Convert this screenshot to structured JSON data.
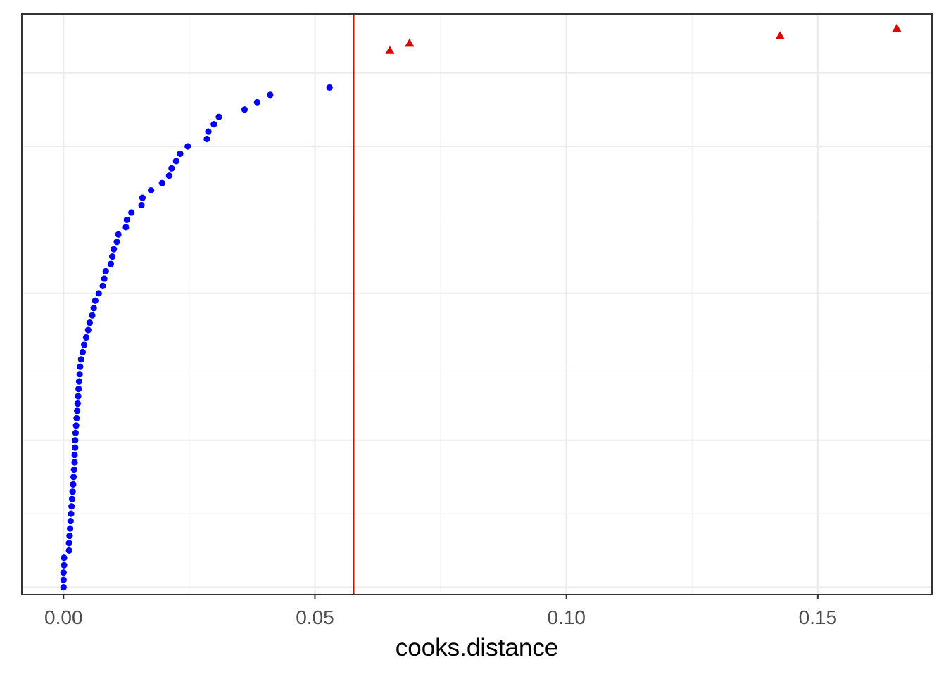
{
  "chart_data": {
    "type": "scatter",
    "title": "",
    "xlabel": "cooks.distance",
    "ylabel": "",
    "xlim": [
      -0.0083,
      0.1727
    ],
    "ylim": [
      0,
      79
    ],
    "x_ticks": [
      0.0,
      0.05,
      0.1,
      0.15
    ],
    "x_tick_labels": [
      "0.00",
      "0.05",
      "0.10",
      "0.15"
    ],
    "y_tick_labels": [],
    "grid": true,
    "legend": "none",
    "threshold": {
      "x": 0.0577,
      "color": "#e00000",
      "orientation": "vertical"
    },
    "series": [
      {
        "marker": "circle",
        "color": "#0000ff",
        "x": [
          0.0,
          0.0,
          0.0,
          0.0001,
          0.0001,
          0.0011,
          0.0011,
          0.0012,
          0.0013,
          0.0014,
          0.0015,
          0.0016,
          0.0017,
          0.0018,
          0.0019,
          0.002,
          0.0021,
          0.0022,
          0.0022,
          0.0023,
          0.0023,
          0.0024,
          0.0025,
          0.0026,
          0.0027,
          0.0028,
          0.0029,
          0.003,
          0.0031,
          0.0032,
          0.0033,
          0.0035,
          0.0038,
          0.0041,
          0.0045,
          0.0049,
          0.0052,
          0.0057,
          0.006,
          0.0063,
          0.007,
          0.0078,
          0.0081,
          0.0084,
          0.0094,
          0.0097,
          0.01,
          0.0106,
          0.0109,
          0.0124,
          0.0126,
          0.0135,
          0.0155,
          0.0157,
          0.0174,
          0.0196,
          0.021,
          0.0215,
          0.0224,
          0.0232,
          0.0247,
          0.0285,
          0.0288,
          0.0299,
          0.0309,
          0.036,
          0.0385,
          0.0411,
          0.0529
        ],
        "y": [
          1,
          2,
          3,
          4,
          5,
          6,
          7,
          8,
          9,
          10,
          11,
          12,
          13,
          14,
          15,
          16,
          17,
          18,
          19,
          20,
          21,
          22,
          23,
          24,
          25,
          26,
          27,
          28,
          29,
          30,
          31,
          32,
          33,
          34,
          35,
          36,
          37,
          38,
          39,
          40,
          41,
          42,
          43,
          44,
          45,
          46,
          47,
          48,
          49,
          50,
          51,
          52,
          53,
          54,
          55,
          56,
          57,
          58,
          59,
          60,
          61,
          62,
          63,
          64,
          65,
          66,
          67,
          68,
          69
        ]
      },
      {
        "marker": "triangle",
        "color": "#e00000",
        "x": [
          0.0649,
          0.0688,
          0.1425,
          0.1657
        ],
        "y": [
          74,
          75,
          76,
          77
        ]
      }
    ]
  }
}
